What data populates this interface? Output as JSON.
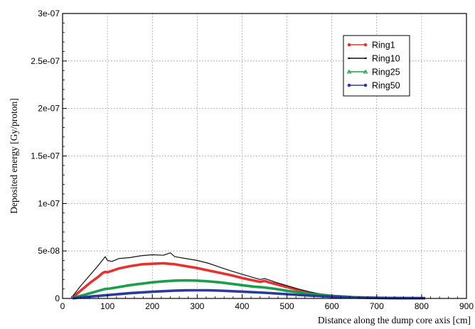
{
  "chart_data": {
    "type": "line",
    "xlabel": "Distance along the dump core axis [cm]",
    "ylabel": "Deposited energy [Gy/proton]",
    "xlim": [
      0,
      900
    ],
    "ylim": [
      0,
      3e-07
    ],
    "xticks": [
      0,
      100,
      200,
      300,
      400,
      500,
      600,
      700,
      800,
      900
    ],
    "xtick_labels": [
      "0",
      "100",
      "200",
      "300",
      "400",
      "500",
      "600",
      "700",
      "800",
      "900"
    ],
    "yticks": [
      0,
      5e-08,
      1e-07,
      1.5e-07,
      2e-07,
      2.5e-07,
      3e-07
    ],
    "ytick_labels": [
      "0",
      "5e-08",
      "1e-07",
      "1.5e-07",
      "2e-07",
      "2.5e-07",
      "3e-07"
    ],
    "grid": true,
    "legend_position": "top-right",
    "series": [
      {
        "name": "Ring1",
        "color": "#e8312f",
        "marker": "circle",
        "x": [
          22,
          40,
          60,
          80,
          90,
          95,
          100,
          110,
          125,
          150,
          175,
          200,
          225,
          250,
          275,
          300,
          325,
          350,
          375,
          400,
          425,
          440,
          450,
          460,
          475,
          500,
          525,
          550,
          575,
          600,
          650,
          700,
          750,
          800,
          808
        ],
        "y": [
          1e-09,
          8e-09,
          1.6e-08,
          2.3e-08,
          2.7e-08,
          2.8e-08,
          2.75e-08,
          2.9e-08,
          3.15e-08,
          3.4e-08,
          3.58e-08,
          3.65e-08,
          3.7e-08,
          3.6e-08,
          3.4e-08,
          3.2e-08,
          2.95e-08,
          2.7e-08,
          2.45e-08,
          2.15e-08,
          1.9e-08,
          1.75e-08,
          1.85e-08,
          1.7e-08,
          1.5e-08,
          1.2e-08,
          9e-09,
          6e-09,
          4e-09,
          2.7e-09,
          1.2e-09,
          6e-10,
          3e-10,
          2e-10,
          2e-10
        ]
      },
      {
        "name": "Ring10",
        "color": "#111111",
        "marker": "dot",
        "x": [
          22,
          40,
          60,
          80,
          90,
          95,
          100,
          110,
          125,
          150,
          175,
          200,
          225,
          240,
          250,
          275,
          300,
          325,
          350,
          375,
          400,
          425,
          440,
          450,
          460,
          475,
          500,
          525,
          550,
          575,
          600,
          650,
          700,
          750,
          800,
          808
        ],
        "y": [
          2e-09,
          1.3e-08,
          2.4e-08,
          3.5e-08,
          4.1e-08,
          4.4e-08,
          4e-08,
          3.9e-08,
          4.2e-08,
          4.3e-08,
          4.5e-08,
          4.6e-08,
          4.55e-08,
          4.8e-08,
          4.4e-08,
          4.2e-08,
          4e-08,
          3.7e-08,
          3.3e-08,
          2.9e-08,
          2.55e-08,
          2.2e-08,
          2e-08,
          2.1e-08,
          1.95e-08,
          1.7e-08,
          1.35e-08,
          1e-08,
          7e-09,
          4.5e-09,
          3e-09,
          1.3e-09,
          6e-10,
          3e-10,
          2e-10,
          2e-10
        ]
      },
      {
        "name": "Ring25",
        "color": "#1a9e4a",
        "marker": "triangle",
        "x": [
          22,
          50,
          80,
          95,
          100,
          125,
          150,
          175,
          200,
          225,
          250,
          275,
          300,
          325,
          350,
          375,
          400,
          425,
          450,
          475,
          500,
          550,
          600,
          650,
          700,
          750,
          800,
          808
        ],
        "y": [
          5e-10,
          4e-09,
          8e-09,
          1e-08,
          1e-08,
          1.2e-08,
          1.4e-08,
          1.55e-08,
          1.7e-08,
          1.8e-08,
          1.88e-08,
          1.9e-08,
          1.88e-08,
          1.8e-08,
          1.7e-08,
          1.55e-08,
          1.4e-08,
          1.25e-08,
          1.15e-08,
          1e-08,
          8e-09,
          5e-09,
          2.7e-09,
          1.3e-09,
          7e-10,
          4e-10,
          2e-10,
          2e-10
        ]
      },
      {
        "name": "Ring50",
        "color": "#2b3a9e",
        "marker": "circle",
        "x": [
          22,
          50,
          100,
          150,
          200,
          250,
          275,
          300,
          325,
          350,
          400,
          450,
          500,
          550,
          600,
          650,
          700,
          750,
          800,
          808
        ],
        "y": [
          2e-10,
          1.5e-09,
          3.5e-09,
          5.5e-09,
          7e-09,
          8.2e-09,
          8.5e-09,
          8.6e-09,
          8.5e-09,
          8.2e-09,
          7.2e-09,
          6e-09,
          4.5e-09,
          3e-09,
          1.8e-09,
          1e-09,
          5e-10,
          3e-10,
          2e-10,
          2e-10
        ]
      }
    ]
  }
}
